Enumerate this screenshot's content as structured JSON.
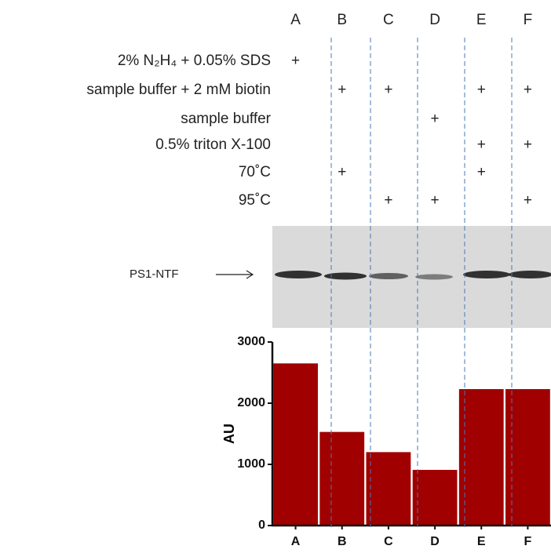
{
  "lanes": [
    "A",
    "B",
    "C",
    "D",
    "E",
    "F"
  ],
  "conditions": [
    {
      "label": "2% N₂H₄ + 0.05% SDS",
      "marks": [
        "+",
        null,
        null,
        null,
        null,
        null
      ]
    },
    {
      "label": "sample buffer + 2 mM biotin",
      "marks": [
        null,
        "+",
        "+",
        null,
        "+",
        "+"
      ]
    },
    {
      "label": "sample buffer",
      "marks": [
        null,
        null,
        null,
        "+",
        null,
        null
      ]
    },
    {
      "label": "0.5% triton X-100",
      "marks": [
        null,
        null,
        null,
        null,
        "+",
        "+"
      ]
    },
    {
      "label": "70˚C",
      "marks": [
        null,
        "+",
        null,
        null,
        "+",
        null
      ]
    },
    {
      "label": "95˚C",
      "marks": [
        null,
        null,
        "+",
        "+",
        null,
        "+"
      ]
    }
  ],
  "gel_label": "PS1-NTF",
  "chart_data": {
    "type": "bar",
    "y_label": "AU",
    "categories": [
      "A",
      "B",
      "C",
      "D",
      "E",
      "F"
    ],
    "values": [
      2650,
      1530,
      1200,
      910,
      2230,
      2230
    ],
    "color": "#a00000",
    "ylim": [
      0,
      3000
    ],
    "yticks": [
      0,
      1000,
      2000,
      3000
    ]
  }
}
